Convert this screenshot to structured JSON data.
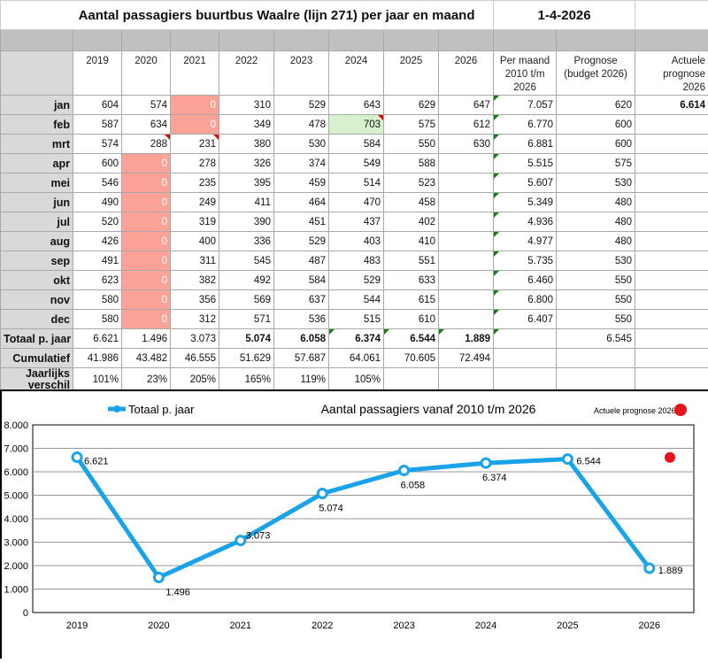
{
  "title": "Aantal passagiers buurtbus Waalre (lijn 271) per jaar en maand",
  "date": "1-4-2026",
  "headers": [
    "2019",
    "2020",
    "2021",
    "2022",
    "2023",
    "2024",
    "2025",
    "2026",
    "Per maand 2010 t/m 2026",
    "Prognose (budget 2026)",
    "Actuele prognose 2026"
  ],
  "months": [
    {
      "label": "jan",
      "values": [
        "604",
        "574",
        "0",
        "310",
        "529",
        "643",
        "629",
        "647",
        "7.057",
        "620",
        "6.614"
      ]
    },
    {
      "label": "feb",
      "values": [
        "587",
        "634",
        "0",
        "349",
        "478",
        "703",
        "575",
        "612",
        "6.770",
        "600",
        ""
      ]
    },
    {
      "label": "mrt",
      "values": [
        "574",
        "288",
        "231",
        "380",
        "530",
        "584",
        "550",
        "630",
        "6.881",
        "600",
        ""
      ]
    },
    {
      "label": "apr",
      "values": [
        "600",
        "0",
        "278",
        "326",
        "374",
        "549",
        "588",
        "",
        "5.515",
        "575",
        ""
      ]
    },
    {
      "label": "mei",
      "values": [
        "546",
        "0",
        "235",
        "395",
        "459",
        "514",
        "523",
        "",
        "5.607",
        "530",
        ""
      ]
    },
    {
      "label": "jun",
      "values": [
        "490",
        "0",
        "249",
        "411",
        "464",
        "470",
        "458",
        "",
        "5.349",
        "480",
        ""
      ]
    },
    {
      "label": "jul",
      "values": [
        "520",
        "0",
        "319",
        "390",
        "451",
        "437",
        "402",
        "",
        "4.936",
        "480",
        ""
      ]
    },
    {
      "label": "aug",
      "values": [
        "426",
        "0",
        "400",
        "336",
        "529",
        "403",
        "410",
        "",
        "4.977",
        "480",
        ""
      ]
    },
    {
      "label": "sep",
      "values": [
        "491",
        "0",
        "311",
        "545",
        "487",
        "483",
        "551",
        "",
        "5.735",
        "530",
        ""
      ]
    },
    {
      "label": "okt",
      "values": [
        "623",
        "0",
        "382",
        "492",
        "584",
        "529",
        "633",
        "",
        "6.460",
        "550",
        ""
      ]
    },
    {
      "label": "nov",
      "values": [
        "580",
        "0",
        "356",
        "569",
        "637",
        "544",
        "615",
        "",
        "6.800",
        "550",
        ""
      ]
    },
    {
      "label": "dec",
      "values": [
        "580",
        "0",
        "312",
        "571",
        "536",
        "515",
        "610",
        "",
        "6.407",
        "550",
        ""
      ]
    }
  ],
  "totals": {
    "label": "Totaal p. jaar",
    "values": [
      "6.621",
      "1.496",
      "3.073",
      "5.074",
      "6.058",
      "6.374",
      "6.544",
      "1.889",
      "",
      "6.545",
      ""
    ]
  },
  "cumulative": {
    "label": "Cumulatief",
    "values": [
      "41.986",
      "43.482",
      "46.555",
      "51.629",
      "57.687",
      "64.061",
      "70.605",
      "72.494",
      "",
      "",
      ""
    ]
  },
  "yearly_diff": {
    "label": "Jaarlijks verschil",
    "values": [
      "101%",
      "23%",
      "205%",
      "165%",
      "119%",
      "105%",
      "",
      "",
      "",
      "",
      ""
    ]
  },
  "colors": {
    "series": "#1aa3e8",
    "prognose": "#e8111c",
    "pink": "#fca296",
    "green": "#d8f0cd"
  },
  "chart_data": {
    "type": "line",
    "title": "Aantal passagiers vanaf 2010 t/m 2026",
    "categories": [
      "2019",
      "2020",
      "2021",
      "2022",
      "2023",
      "2024",
      "2025",
      "2026"
    ],
    "series": [
      {
        "name": "Totaal p. jaar",
        "values": [
          6621,
          1496,
          3073,
          5074,
          6058,
          6374,
          6544,
          1889
        ],
        "labels": [
          "6.621",
          "1.496",
          "3.073",
          "5.074",
          "6.058",
          "6.374",
          "6.544",
          "1.889"
        ]
      },
      {
        "name": "Actuele prognose 2026",
        "values": [
          null,
          null,
          null,
          null,
          null,
          null,
          null,
          6614
        ]
      }
    ],
    "yticks": [
      "0",
      "1.000",
      "2.000",
      "3.000",
      "4.000",
      "5.000",
      "6.000",
      "7.000",
      "8.000"
    ],
    "ylim": [
      0,
      8000
    ],
    "grid": true,
    "legend": "top"
  }
}
